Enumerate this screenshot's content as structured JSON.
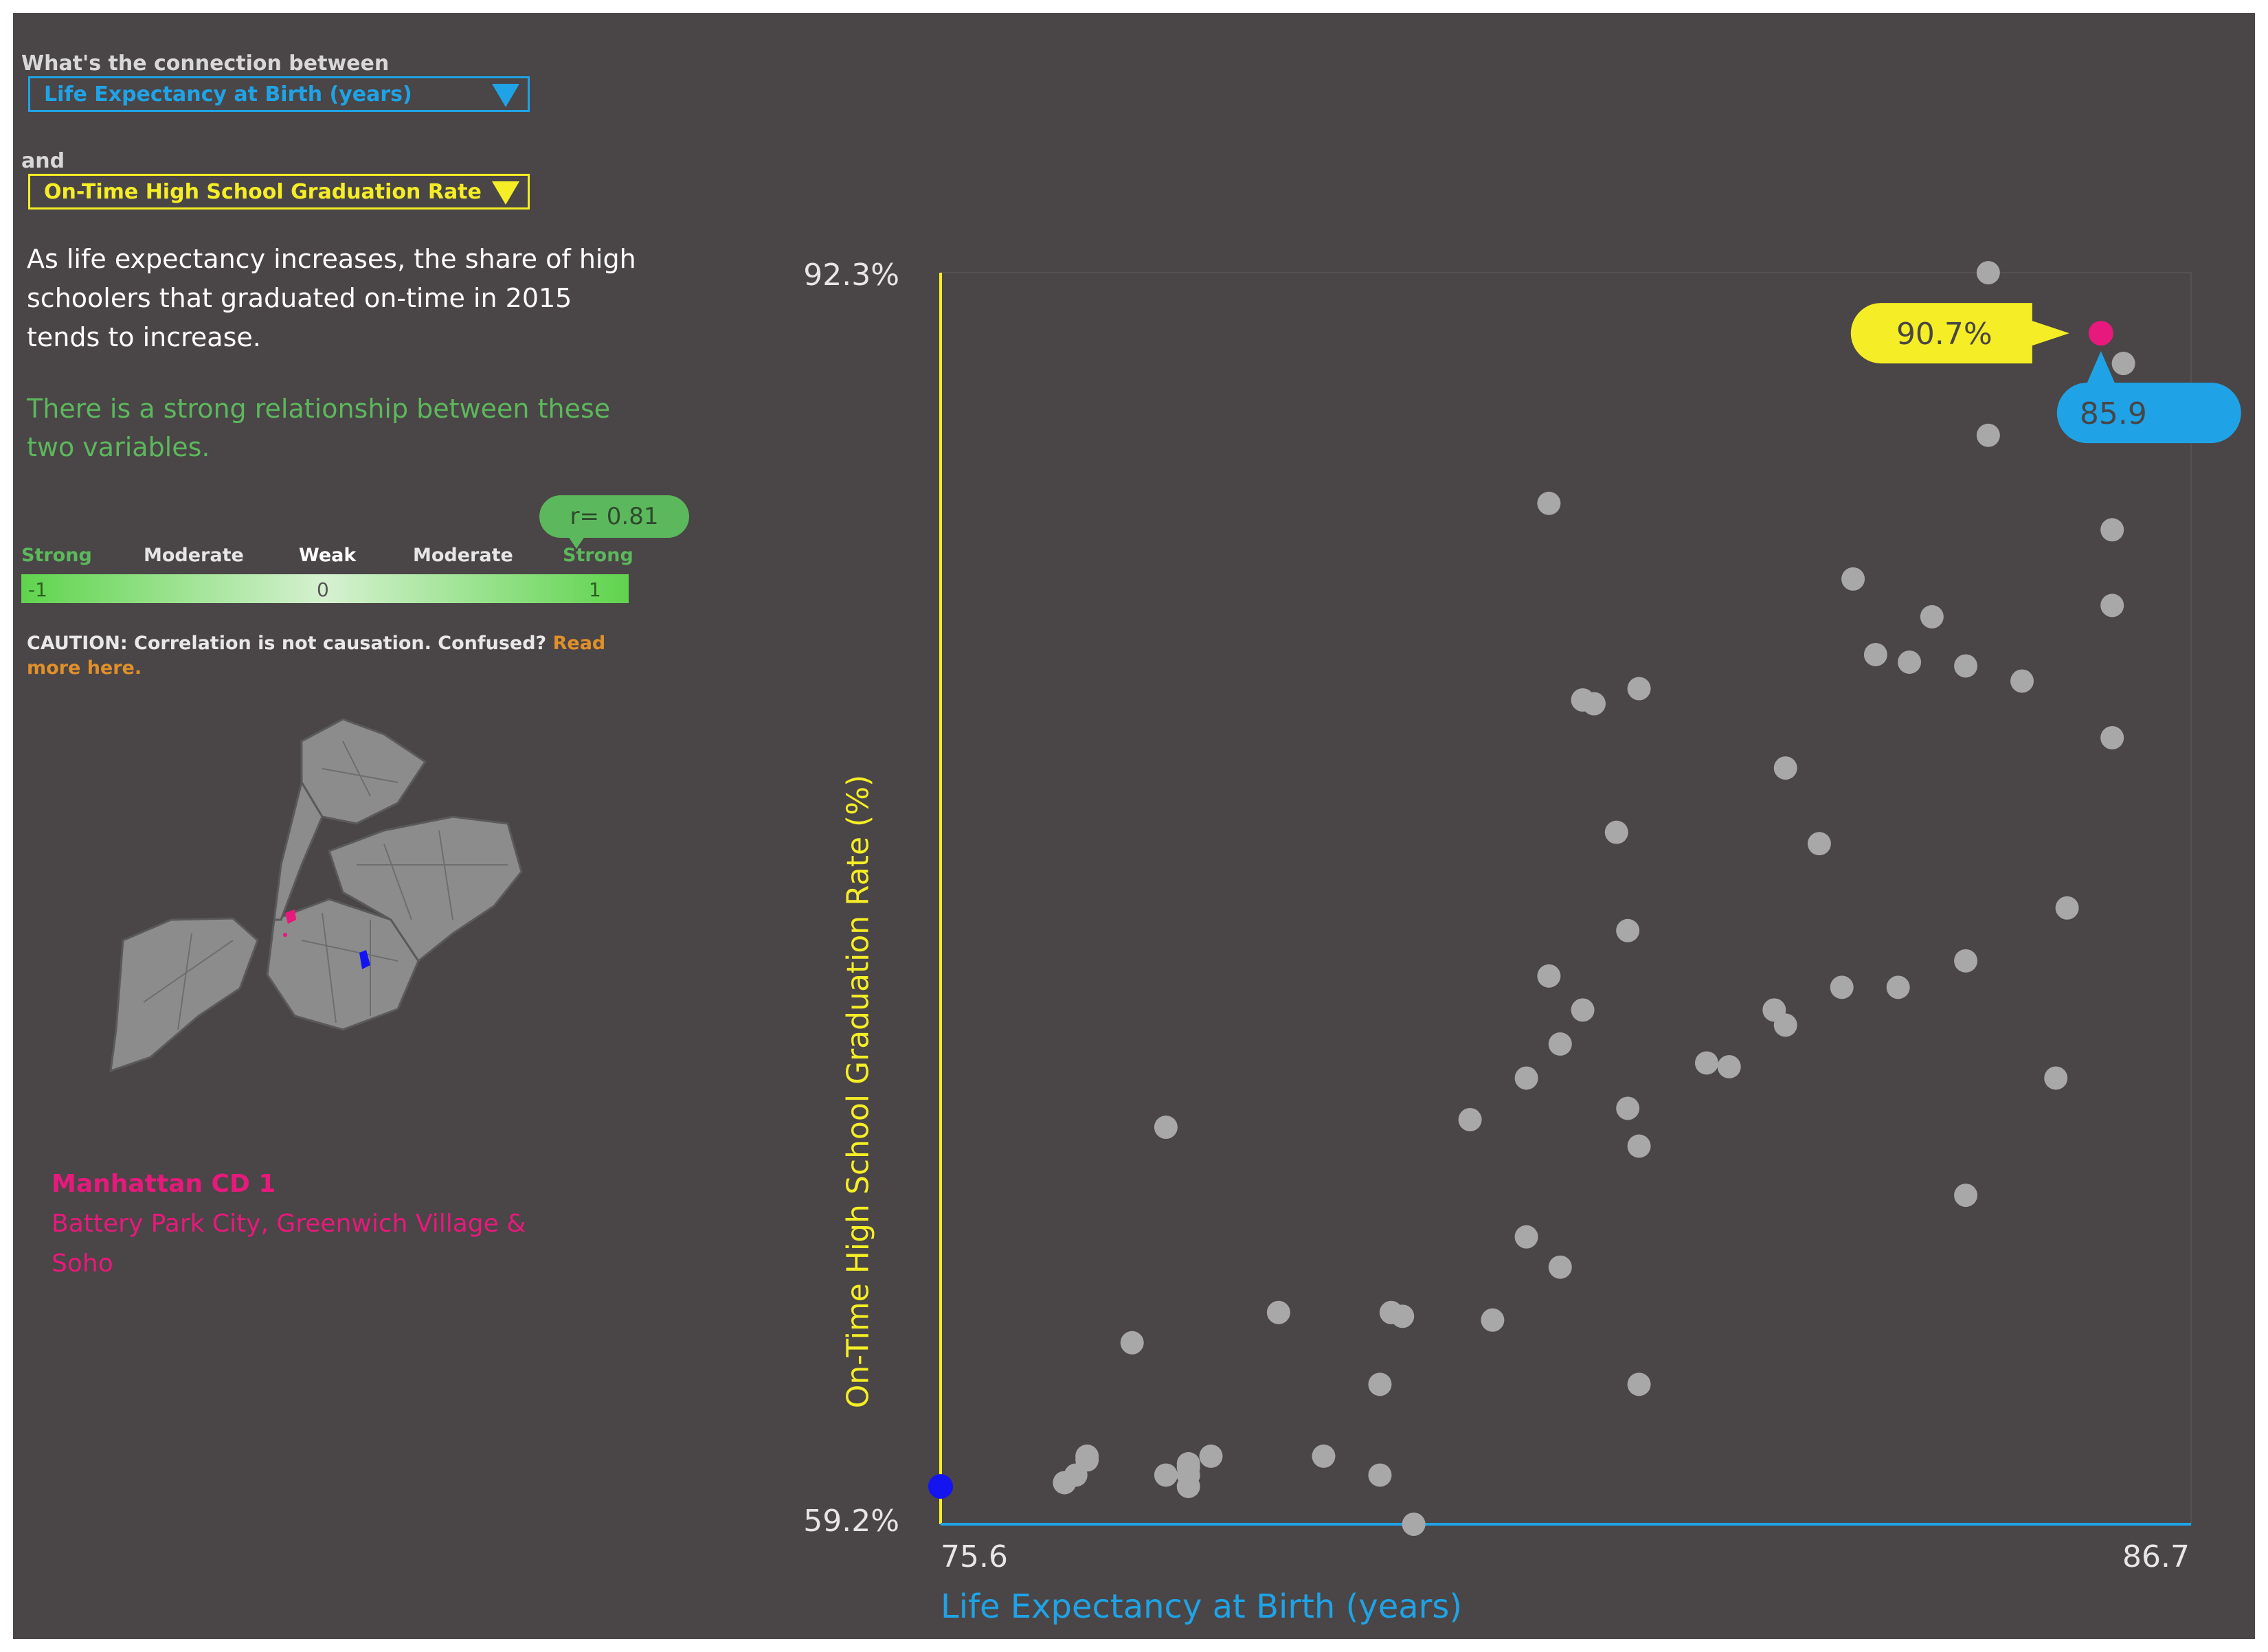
{
  "question": {
    "prefix": "What's the connection between",
    "joiner": "and",
    "x_select": "Life Expectancy at Birth (years)",
    "y_select": "On-Time High School Graduation Rate (%)"
  },
  "summary": "As life expectancy increases, the share of high schoolers that graduated on-time in 2015 tends to increase.",
  "strength": "There is a strong relationship between these two variables.",
  "correlation": {
    "badge": "r= 0.81",
    "r": 0.81,
    "labels": [
      "Strong",
      "Moderate",
      "Weak",
      "Moderate",
      "Strong"
    ],
    "numbers": [
      "-1",
      "0",
      "1"
    ]
  },
  "caution": {
    "text": "CAUTION: Correlation is not causation. Confused?",
    "link": "Read more here."
  },
  "district": {
    "name": "Manhattan CD 1",
    "neighborhoods": "Battery Park City, Greenwich Village & Soho"
  },
  "colors": {
    "background": "#4a4546",
    "x_accent": "#1fa3e6",
    "y_accent": "#f5ee26",
    "highlight": "#e8197c",
    "min_marker": "#1414f0",
    "strong_green": "#5cb85c",
    "point": "#a8a8a8"
  },
  "map_icon": "nyc-community-districts-map",
  "chart_data": {
    "type": "scatter",
    "title": "",
    "xlabel": "Life Expectancy at Birth (years)",
    "ylabel": "On-Time High School Graduation Rate (%)",
    "xlim": [
      75.6,
      86.7
    ],
    "ylim": [
      59.2,
      92.3
    ],
    "x_ticks": [
      "75.6",
      "86.7"
    ],
    "y_ticks": [
      "92.3%",
      "59.2%"
    ],
    "grid": false,
    "legend": "none",
    "highlight": {
      "x": 85.9,
      "y": 90.7,
      "x_label": "85.9",
      "y_label": "90.7%"
    },
    "min_marker": {
      "x": 75.6,
      "y": 60.2
    },
    "points": [
      {
        "x": 84.9,
        "y": 92.3
      },
      {
        "x": 86.1,
        "y": 89.9
      },
      {
        "x": 84.9,
        "y": 88.0
      },
      {
        "x": 81.0,
        "y": 86.2
      },
      {
        "x": 86.0,
        "y": 85.5
      },
      {
        "x": 86.0,
        "y": 83.5
      },
      {
        "x": 83.7,
        "y": 84.2
      },
      {
        "x": 84.4,
        "y": 83.2
      },
      {
        "x": 83.9,
        "y": 82.2
      },
      {
        "x": 84.2,
        "y": 82.0
      },
      {
        "x": 84.7,
        "y": 81.9
      },
      {
        "x": 85.2,
        "y": 81.5
      },
      {
        "x": 81.4,
        "y": 80.9
      },
      {
        "x": 81.3,
        "y": 81.0
      },
      {
        "x": 81.8,
        "y": 81.3
      },
      {
        "x": 86.0,
        "y": 80.0
      },
      {
        "x": 83.1,
        "y": 79.2
      },
      {
        "x": 81.6,
        "y": 77.5
      },
      {
        "x": 83.4,
        "y": 77.2
      },
      {
        "x": 85.6,
        "y": 75.5
      },
      {
        "x": 81.7,
        "y": 74.9
      },
      {
        "x": 81.0,
        "y": 73.7
      },
      {
        "x": 84.7,
        "y": 74.1
      },
      {
        "x": 83.6,
        "y": 73.4
      },
      {
        "x": 84.1,
        "y": 73.4
      },
      {
        "x": 81.3,
        "y": 72.8
      },
      {
        "x": 83.0,
        "y": 72.8
      },
      {
        "x": 83.1,
        "y": 72.4
      },
      {
        "x": 81.1,
        "y": 71.9
      },
      {
        "x": 82.6,
        "y": 71.3
      },
      {
        "x": 82.4,
        "y": 71.4
      },
      {
        "x": 80.8,
        "y": 71.0
      },
      {
        "x": 85.5,
        "y": 71.0
      },
      {
        "x": 81.7,
        "y": 70.2
      },
      {
        "x": 80.3,
        "y": 69.9
      },
      {
        "x": 77.6,
        "y": 69.7
      },
      {
        "x": 81.8,
        "y": 69.2
      },
      {
        "x": 84.7,
        "y": 67.9
      },
      {
        "x": 80.8,
        "y": 66.8
      },
      {
        "x": 81.1,
        "y": 66.0
      },
      {
        "x": 78.6,
        "y": 64.8
      },
      {
        "x": 79.6,
        "y": 64.8
      },
      {
        "x": 79.7,
        "y": 64.7
      },
      {
        "x": 77.3,
        "y": 64.0
      },
      {
        "x": 79.5,
        "y": 62.9
      },
      {
        "x": 81.8,
        "y": 62.9
      },
      {
        "x": 76.9,
        "y": 61.0
      },
      {
        "x": 76.9,
        "y": 60.9
      },
      {
        "x": 77.8,
        "y": 60.5
      },
      {
        "x": 77.8,
        "y": 60.8
      },
      {
        "x": 77.8,
        "y": 60.2
      },
      {
        "x": 77.8,
        "y": 60.7
      },
      {
        "x": 78.0,
        "y": 61.0
      },
      {
        "x": 79.0,
        "y": 61.0
      },
      {
        "x": 79.5,
        "y": 60.5
      },
      {
        "x": 77.6,
        "y": 60.5
      },
      {
        "x": 76.8,
        "y": 60.5
      },
      {
        "x": 76.7,
        "y": 60.3
      },
      {
        "x": 79.8,
        "y": 59.2
      },
      {
        "x": 80.5,
        "y": 64.6
      }
    ]
  }
}
